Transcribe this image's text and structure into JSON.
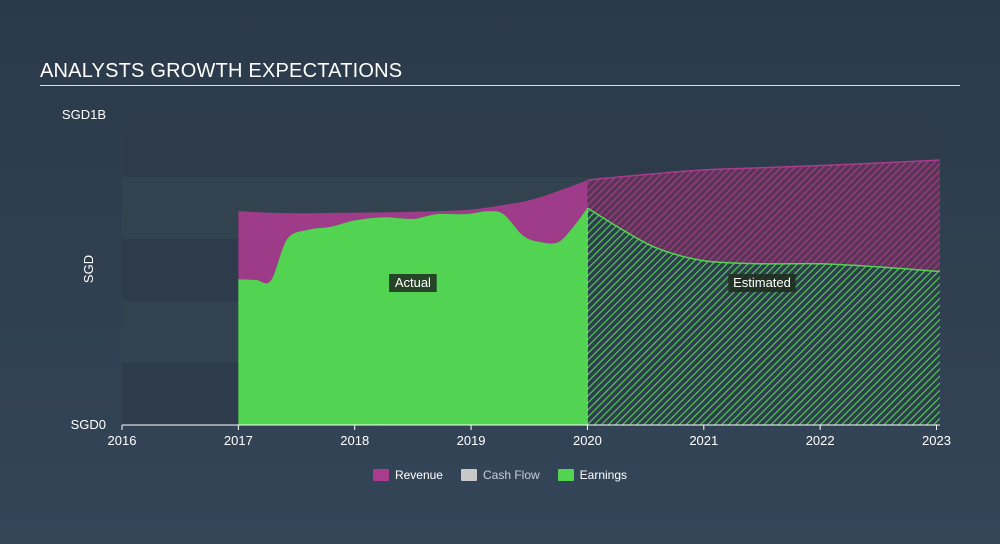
{
  "title": "ANALYSTS GROWTH EXPECTATIONS",
  "colors": {
    "revenue": "#a83c8e",
    "cash_flow": "#c8c8c8",
    "earnings": "#52d452",
    "background": "#2f3e4e",
    "plot_band_dark": "#2d3b4a",
    "plot_band_light": "#33424f"
  },
  "chart_data": {
    "type": "area",
    "ylabel": "SGD",
    "y_tick_labels": [
      "SGD0",
      "SGD1B"
    ],
    "ylim": [
      0,
      1000000000
    ],
    "xlim": [
      2016,
      2023.03
    ],
    "x_ticks": [
      2016,
      2017,
      2018,
      2019,
      2020,
      2021,
      2022,
      2023
    ],
    "x_tick_labels": [
      "2016",
      "2017",
      "2018",
      "2019",
      "2020",
      "2021",
      "2022",
      "2023"
    ],
    "annotations": [
      {
        "label": "Actual",
        "x": 2018.5
      },
      {
        "label": "Estimated",
        "x": 2021.5
      }
    ],
    "actual_end": 2020,
    "legend_placement": "bottom-center",
    "series": [
      {
        "name": "Revenue",
        "x": [
          2017,
          2017.25,
          2017.5,
          2017.75,
          2018,
          2018.25,
          2018.5,
          2018.75,
          2019,
          2019.25,
          2019.5,
          2019.75,
          2020,
          2020.5,
          2021,
          2021.5,
          2022,
          2022.5,
          2023.03
        ],
        "values": [
          690000000,
          685000000,
          683000000,
          684000000,
          685000000,
          686000000,
          688000000,
          690000000,
          695000000,
          708000000,
          725000000,
          755000000,
          790000000,
          808000000,
          823000000,
          830000000,
          837000000,
          845000000,
          855000000
        ]
      },
      {
        "name": "Cash Flow",
        "x": [],
        "values": []
      },
      {
        "name": "Earnings",
        "x": [
          2017,
          2017.15,
          2017.28,
          2017.42,
          2017.6,
          2017.8,
          2018,
          2018.25,
          2018.5,
          2018.7,
          2018.9,
          2019,
          2019.15,
          2019.28,
          2019.45,
          2019.6,
          2019.75,
          2019.88,
          2020,
          2020.3,
          2020.6,
          2021,
          2021.5,
          2022,
          2022.5,
          2023.03
        ],
        "values": [
          470000000,
          468000000,
          466000000,
          600000000,
          630000000,
          640000000,
          660000000,
          670000000,
          665000000,
          680000000,
          680000000,
          682000000,
          690000000,
          680000000,
          610000000,
          590000000,
          590000000,
          640000000,
          700000000,
          630000000,
          570000000,
          530000000,
          520000000,
          520000000,
          510000000,
          495000000
        ]
      }
    ]
  },
  "legend": {
    "items": [
      {
        "label": "Revenue",
        "active": true
      },
      {
        "label": "Cash Flow",
        "active": false
      },
      {
        "label": "Earnings",
        "active": true
      }
    ]
  }
}
